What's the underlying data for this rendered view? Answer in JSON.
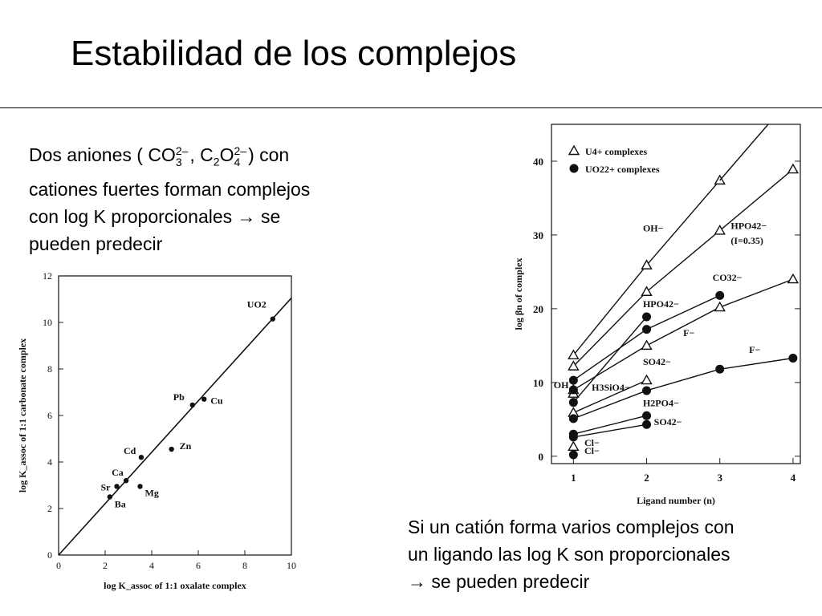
{
  "slide": {
    "title": "Estabilidad de los complejos"
  },
  "left_text": {
    "line1_a": "Dos aniones (",
    "ion1_base": "CO",
    "ion1_sup": "2–",
    "ion1_sub": "3",
    "sep": ",",
    "ion2_base": "C",
    "ion2_sub1": "2",
    "ion2_o": "O",
    "ion2_sup": "2–",
    "ion2_sub": "4",
    "line1_b": ") con",
    "line2": "cationes fuertes forman complejos",
    "line3": "con log K proporcionales → se",
    "line4": "pueden predecir"
  },
  "right_text": {
    "line1": "Si un catión forma varios complejos con",
    "line2": "un ligando las log K son proporcionales",
    "line3": "→ se pueden predecir"
  },
  "chart_data": [
    {
      "type": "scatter",
      "xlabel": "log K_assoc of 1:1 oxalate complex",
      "ylabel": "log K_assoc of 1:1 carbonate complex",
      "xlim": [
        0,
        10
      ],
      "ylim": [
        0,
        12
      ],
      "x_ticks": [
        0,
        2,
        4,
        6,
        8,
        10
      ],
      "y_ticks": [
        0,
        2,
        4,
        6,
        8,
        10,
        12
      ],
      "points": [
        {
          "label": "Ba",
          "x": 2.2,
          "y": 2.5
        },
        {
          "label": "Sr",
          "x": 2.5,
          "y": 2.95
        },
        {
          "label": "Ca",
          "x": 2.9,
          "y": 3.2
        },
        {
          "label": "Mg",
          "x": 3.5,
          "y": 2.95
        },
        {
          "label": "Cd",
          "x": 3.55,
          "y": 4.2
        },
        {
          "label": "Zn",
          "x": 4.85,
          "y": 4.55
        },
        {
          "label": "Pb",
          "x": 5.75,
          "y": 6.45
        },
        {
          "label": "Cu",
          "x": 6.25,
          "y": 6.7
        },
        {
          "label": "UO2",
          "x": 9.2,
          "y": 10.15
        }
      ],
      "fit_line": {
        "x": [
          0,
          10
        ],
        "y": [
          0,
          11.05
        ]
      }
    },
    {
      "type": "line",
      "xlabel": "Ligand number (n)",
      "ylabel": "log βn of complex",
      "xlim": [
        0.7,
        4.1
      ],
      "ylim": [
        -1,
        45
      ],
      "x_ticks": [
        1,
        2,
        3,
        4
      ],
      "y_ticks": [
        0,
        10,
        20,
        30,
        40
      ],
      "legend": [
        {
          "name": "U4+ complexes",
          "marker": "triangle"
        },
        {
          "name": "UO22+ complexes",
          "marker": "circle"
        }
      ],
      "legend_position": "top-left",
      "series": [
        {
          "name": "OH−",
          "marker": "triangle",
          "x": [
            1,
            2,
            3
          ],
          "y": [
            13.7,
            25.9,
            37.4
          ]
        },
        {
          "name": "HPO42− (I=0.35)",
          "marker": "triangle",
          "x": [
            1,
            2,
            3,
            4
          ],
          "y": [
            12.2,
            22.3,
            30.6,
            38.9
          ]
        },
        {
          "name": "F−",
          "marker": "triangle",
          "x": [
            1,
            2,
            3,
            4
          ],
          "y": [
            9.0,
            15.0,
            20.2,
            24.0
          ]
        },
        {
          "name": "H3SiO4−",
          "marker": "triangle",
          "x": [
            1
          ],
          "y": [
            8.5
          ]
        },
        {
          "name": "SO42−",
          "marker": "triangle",
          "x": [
            1,
            2
          ],
          "y": [
            5.9,
            10.3
          ]
        },
        {
          "name": "Cl−",
          "marker": "triangle",
          "x": [
            1
          ],
          "y": [
            1.3
          ]
        },
        {
          "name": "CO32−",
          "marker": "circle",
          "x": [
            1,
            2,
            3
          ],
          "y": [
            10.3,
            17.2,
            21.8
          ]
        },
        {
          "name": "HPO42−",
          "marker": "circle",
          "x": [
            1,
            2
          ],
          "y": [
            7.3,
            18.9
          ]
        },
        {
          "name": "OH",
          "marker": "circle",
          "x": [
            1
          ],
          "y": [
            9.0
          ]
        },
        {
          "name": "F−",
          "marker": "circle",
          "x": [
            1,
            2,
            3,
            4
          ],
          "y": [
            5.1,
            8.9,
            11.8,
            13.3
          ]
        },
        {
          "name": "H2PO4−",
          "marker": "circle",
          "x": [
            1,
            2
          ],
          "y": [
            3.0,
            5.5
          ]
        },
        {
          "name": "SO42−",
          "marker": "circle",
          "x": [
            1,
            2
          ],
          "y": [
            2.6,
            4.3
          ]
        },
        {
          "name": "Cl−",
          "marker": "circle",
          "x": [
            1
          ],
          "y": [
            0.2
          ]
        }
      ],
      "curve_labels": [
        {
          "text": "OH−",
          "x": 1.95,
          "y": 30.5
        },
        {
          "text": "HPO42−",
          "x": 3.15,
          "y": 30.8
        },
        {
          "text": "(I=0.35)",
          "x": 3.15,
          "y": 28.8
        },
        {
          "text": "CO32−",
          "x": 2.9,
          "y": 23.8
        },
        {
          "text": "HPO42−",
          "x": 1.95,
          "y": 20.2
        },
        {
          "text": "F−",
          "x": 2.5,
          "y": 16.3
        },
        {
          "text": "SO42−",
          "x": 1.95,
          "y": 12.4
        },
        {
          "text": "F−",
          "x": 3.4,
          "y": 14.0
        },
        {
          "text": "OH",
          "x": 0.73,
          "y": 9.2
        },
        {
          "text": "H3SiO4−",
          "x": 1.25,
          "y": 8.9
        },
        {
          "text": "H2PO4−",
          "x": 1.95,
          "y": 6.8
        },
        {
          "text": "SO42−",
          "x": 2.1,
          "y": 4.2
        },
        {
          "text": "Cl−",
          "x": 1.15,
          "y": 1.4
        },
        {
          "text": "Cl−",
          "x": 1.15,
          "y": 0.3
        }
      ]
    }
  ]
}
